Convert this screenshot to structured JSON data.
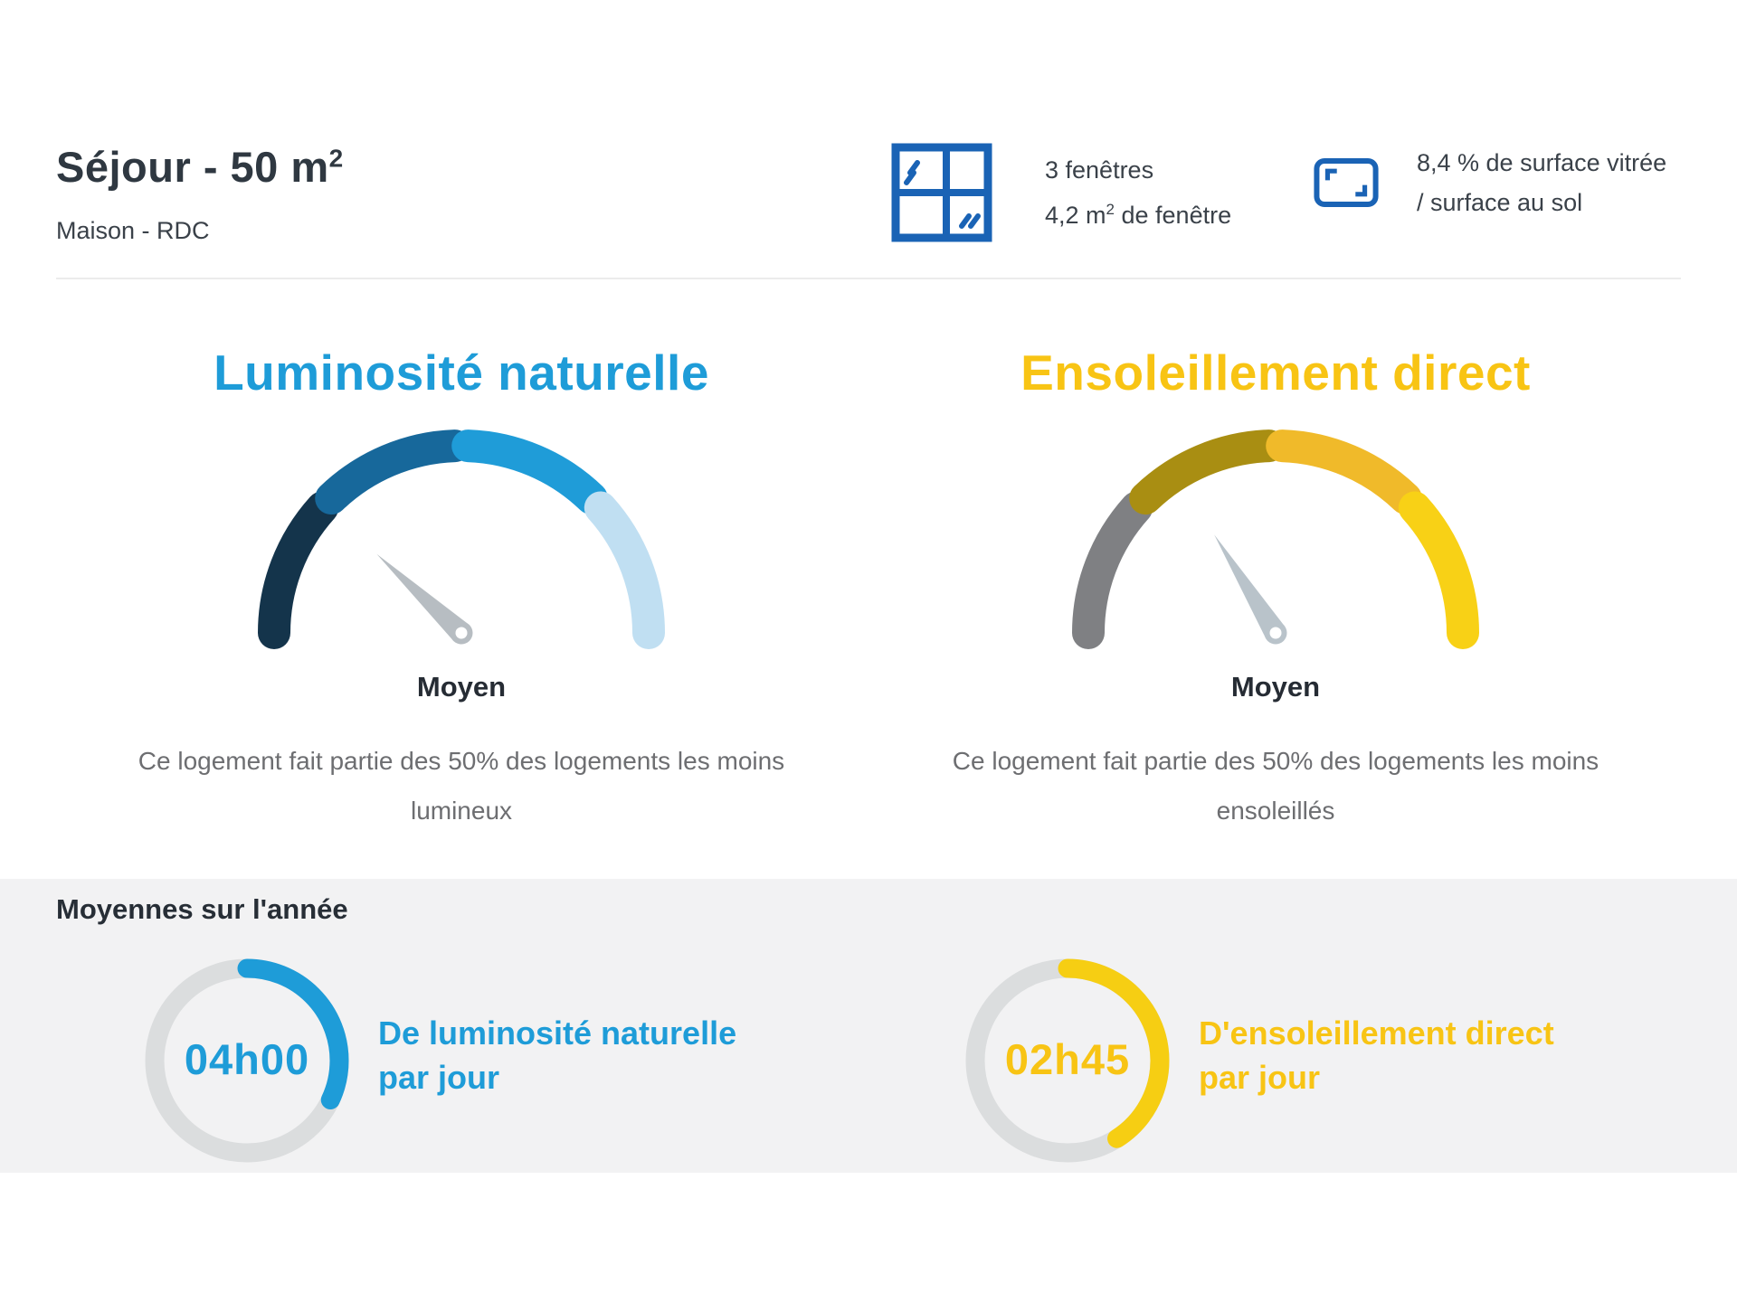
{
  "header": {
    "title": "Séjour - 50 m",
    "title_sup": "2",
    "subtitle": "Maison - RDC",
    "windows": {
      "line1": "3 fenêtres",
      "line2_prefix": "4,2 m",
      "line2_sup": "2",
      "line2_suffix": " de fenêtre"
    },
    "glazing": {
      "line1": "8,4 % de surface vitrée",
      "line2": "/ surface au sol"
    }
  },
  "colors": {
    "blue_accent": "#1e9cd8",
    "yellow_accent": "#f8c414",
    "icon_blue": "#1a63b5",
    "dark_text": "#2f3841",
    "gray_text": "#6d6e71",
    "band_background": "#f2f2f3",
    "ring_track": "#dbddde"
  },
  "gauges": [
    {
      "title": "Luminosité naturelle",
      "title_color": "#1e9cd8",
      "rating": "Moyen",
      "description_line1": "Ce logement fait partie des 50% des logements les moins",
      "description_line2": "lumineux",
      "segment_colors": [
        "#14344b",
        "#17689b",
        "#1f9cd8",
        "#c0dff2"
      ],
      "needle_angle_deg": 137,
      "needle_color": "#b7bdc2"
    },
    {
      "title": "Ensoleillement direct",
      "title_color": "#f8c414",
      "rating": "Moyen",
      "description_line1": "Ce logement fait partie des 50% des logements les moins",
      "description_line2": "ensoleillés",
      "segment_colors": [
        "#7f8083",
        "#a98e12",
        "#f0ba2a",
        "#f8d116"
      ],
      "needle_angle_deg": 122,
      "needle_color": "#b9c3ca"
    }
  ],
  "averages": {
    "section_title": "Moyennes sur l'année",
    "items": [
      {
        "value": "04h00",
        "label_line1": "De luminosité naturelle",
        "label_line2": "par jour",
        "color": "#1e9cd8",
        "arc_color": "#1e9cd8",
        "fraction": 0.32
      },
      {
        "value": "02h45",
        "label_line1": "D'ensoleillement direct",
        "label_line2": "par jour",
        "color": "#f8c414",
        "arc_color": "#f6ce13",
        "fraction": 0.41
      }
    ]
  },
  "chart_data": [
    {
      "type": "gauge",
      "title": "Luminosité naturelle",
      "reading": "Moyen",
      "annotation": "Ce logement fait partie des 50% des logements les moins lumineux",
      "arc_span_deg": 180,
      "segments": 4,
      "needle_angle_deg": 137,
      "segment_colors": [
        "#14344b",
        "#17689b",
        "#1f9cd8",
        "#c0dff2"
      ]
    },
    {
      "type": "gauge",
      "title": "Ensoleillement direct",
      "reading": "Moyen",
      "annotation": "Ce logement fait partie des 50% des logements les moins ensoleillés",
      "arc_span_deg": 180,
      "segments": 4,
      "needle_angle_deg": 122,
      "segment_colors": [
        "#7f8083",
        "#a98e12",
        "#f0ba2a",
        "#f8d116"
      ]
    },
    {
      "type": "donut",
      "title": "De luminosité naturelle par jour",
      "value": "04h00",
      "fraction": 0.32,
      "color": "#1e9cd8"
    },
    {
      "type": "donut",
      "title": "D'ensoleillement direct par jour",
      "value": "02h45",
      "fraction": 0.41,
      "color": "#f6ce13"
    }
  ]
}
